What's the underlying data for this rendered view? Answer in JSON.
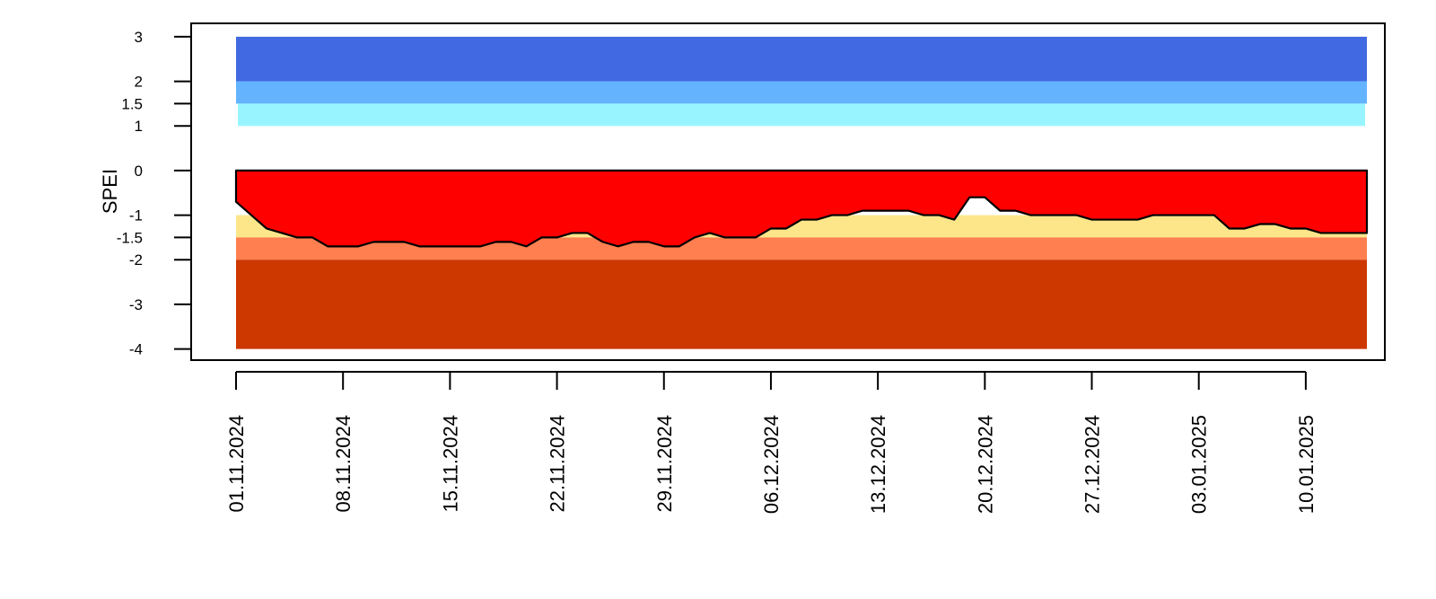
{
  "chart_data": {
    "type": "area",
    "ylabel": "SPEI",
    "y_ticks": [
      3,
      2,
      1.5,
      1,
      0,
      -1,
      -1.5,
      -2,
      -3,
      -4
    ],
    "ylim": [
      -4.25,
      3.3
    ],
    "x_range": [
      "01.11.2024",
      "14.01.2025"
    ],
    "x_tick_labels": [
      "01.11.2024",
      "08.11.2024",
      "15.11.2024",
      "22.11.2024",
      "29.11.2024",
      "06.12.2024",
      "13.12.2024",
      "20.12.2024",
      "27.12.2024",
      "03.01.2025",
      "10.01.2025"
    ],
    "x_tick_day_offsets": [
      0,
      7,
      14,
      21,
      28,
      35,
      42,
      49,
      56,
      63,
      70
    ],
    "background_bands": [
      {
        "from": 2,
        "to": 3,
        "color": "#4169e1"
      },
      {
        "from": 1.5,
        "to": 2,
        "color": "#63b3ff"
      },
      {
        "from": 1,
        "to": 1.5,
        "color": "#98f5ff"
      },
      {
        "from": -1.5,
        "to": -1,
        "color": "#fde68a"
      },
      {
        "from": -2,
        "to": -1.5,
        "color": "#ff7f50"
      },
      {
        "from": -4,
        "to": -2,
        "color": "#cd3700"
      }
    ],
    "fill_color": "#ff0000",
    "outline_color": "#000000",
    "series": [
      {
        "dates": [
          "01.11.2024",
          "02.11.2024",
          "03.11.2024",
          "04.11.2024",
          "05.11.2024",
          "06.11.2024",
          "07.11.2024",
          "08.11.2024",
          "09.11.2024",
          "10.11.2024",
          "11.11.2024",
          "12.11.2024",
          "13.11.2024",
          "14.11.2024",
          "15.11.2024",
          "16.11.2024",
          "17.11.2024",
          "18.11.2024",
          "19.11.2024",
          "20.11.2024",
          "21.11.2024",
          "22.11.2024",
          "23.11.2024",
          "24.11.2024",
          "25.11.2024",
          "26.11.2024",
          "27.11.2024",
          "28.11.2024",
          "29.11.2024",
          "30.11.2024",
          "01.12.2024",
          "02.12.2024",
          "03.12.2024",
          "04.12.2024",
          "05.12.2024",
          "06.12.2024",
          "07.12.2024",
          "08.12.2024",
          "09.12.2024",
          "10.12.2024",
          "11.12.2024",
          "12.12.2024",
          "13.12.2024",
          "14.12.2024",
          "15.12.2024",
          "16.12.2024",
          "17.12.2024",
          "18.12.2024",
          "19.12.2024",
          "20.12.2024",
          "21.12.2024",
          "22.12.2024",
          "23.12.2024",
          "24.12.2024",
          "25.12.2024",
          "26.12.2024",
          "27.12.2024",
          "28.12.2024",
          "29.12.2024",
          "30.12.2024",
          "31.12.2024",
          "01.01.2025",
          "02.01.2025",
          "03.01.2025",
          "04.01.2025",
          "05.01.2025",
          "06.01.2025",
          "07.01.2025",
          "08.01.2025",
          "09.01.2025",
          "10.01.2025",
          "11.01.2025",
          "12.01.2025",
          "13.01.2025",
          "14.01.2025"
        ],
        "values": [
          -0.7,
          -1.0,
          -1.3,
          -1.4,
          -1.5,
          -1.5,
          -1.7,
          -1.7,
          -1.7,
          -1.6,
          -1.6,
          -1.6,
          -1.7,
          -1.7,
          -1.7,
          -1.7,
          -1.7,
          -1.6,
          -1.6,
          -1.7,
          -1.5,
          -1.5,
          -1.4,
          -1.4,
          -1.6,
          -1.7,
          -1.6,
          -1.6,
          -1.7,
          -1.7,
          -1.5,
          -1.4,
          -1.5,
          -1.5,
          -1.5,
          -1.3,
          -1.3,
          -1.1,
          -1.1,
          -1.0,
          -1.0,
          -0.9,
          -0.9,
          -0.9,
          -0.9,
          -1.0,
          -1.0,
          -1.1,
          -0.6,
          -0.6,
          -0.9,
          -0.9,
          -1.0,
          -1.0,
          -1.0,
          -1.0,
          -1.1,
          -1.1,
          -1.1,
          -1.1,
          -1.0,
          -1.0,
          -1.0,
          -1.0,
          -1.0,
          -1.3,
          -1.3,
          -1.2,
          -1.2,
          -1.3,
          -1.3,
          -1.4,
          -1.4,
          -1.4,
          -1.4
        ]
      }
    ]
  }
}
